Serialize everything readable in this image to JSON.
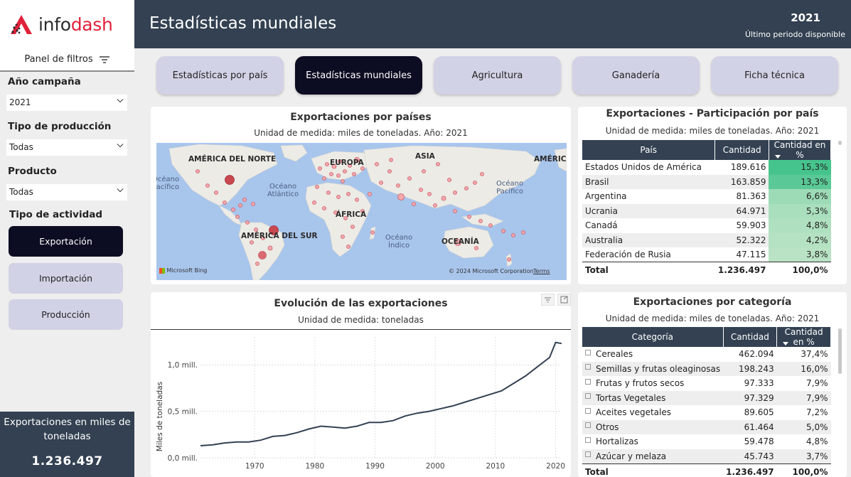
{
  "logo": {
    "part1": "info",
    "part2": "dash"
  },
  "sidebar": {
    "filter_panel_title": "Panel de filtros",
    "filters": [
      {
        "label": "Año campaña",
        "value": "2021"
      },
      {
        "label": "Tipo de producción",
        "value": "Todas"
      },
      {
        "label": "Producto",
        "value": "Todas"
      }
    ],
    "activity_label": "Tipo de actividad",
    "activity_buttons": [
      {
        "label": "Exportación",
        "active": true
      },
      {
        "label": "Importación",
        "active": false
      },
      {
        "label": "Producción",
        "active": false
      }
    ],
    "kpi": {
      "label": "Exportaciones en miles de toneladas",
      "value": "1.236.497"
    }
  },
  "header": {
    "title": "Estadísticas mundiales",
    "year": "2021",
    "year_sub": "Último periodo disponible"
  },
  "tabs": [
    {
      "label": "Estadísticas por país",
      "active": false
    },
    {
      "label": "Estadísticas mundiales",
      "active": true
    },
    {
      "label": "Agricultura",
      "active": false
    },
    {
      "label": "Ganadería",
      "active": false
    },
    {
      "label": "Ficha técnica",
      "active": false
    }
  ],
  "map_card": {
    "title": "Exportaciones por países",
    "subtitle": "Unidad de medida: miles de toneladas. Año: 2021",
    "continent_labels": [
      "AMÉRICA DEL NORTE",
      "EUROPA",
      "ASIA",
      "AMÉRICA",
      "ÁFRICA",
      "AMÉRICA DEL SUR",
      "OCEANÍA"
    ],
    "ocean_labels": [
      "Océano\nPacífico",
      "Océano\nAtlántico",
      "Océano\nÍndico",
      "Océano\nPacífico"
    ],
    "footer_bing": "Microsoft Bing",
    "footer_copyright": "© 2024 Microsoft Corporation",
    "footer_terms": "Terms"
  },
  "country_table": {
    "title": "Exportaciones - Participación por país",
    "subtitle": "Unidad de medida: miles de toneladas. Año: 2021",
    "columns": [
      "País",
      "Cantidad",
      "Cantidad en %"
    ],
    "rows": [
      {
        "name": "Estados Unidos de América",
        "qty": "189.616",
        "pct": "15,3%",
        "share": 15.3
      },
      {
        "name": "Brasil",
        "qty": "163.859",
        "pct": "13,3%",
        "share": 13.3
      },
      {
        "name": "Argentina",
        "qty": "81.363",
        "pct": "6,6%",
        "share": 6.6
      },
      {
        "name": "Ucrania",
        "qty": "64.971",
        "pct": "5,3%",
        "share": 5.3
      },
      {
        "name": "Canadá",
        "qty": "59.903",
        "pct": "4,8%",
        "share": 4.8
      },
      {
        "name": "Australia",
        "qty": "52.322",
        "pct": "4,2%",
        "share": 4.2
      },
      {
        "name": "Federación de Rusia",
        "qty": "47.115",
        "pct": "3,8%",
        "share": 3.8
      }
    ],
    "total": {
      "label": "Total",
      "qty": "1.236.497",
      "pct": "100,0%"
    }
  },
  "category_table": {
    "title": "Exportaciones por categoría",
    "subtitle": "Unidad de medida: miles de toneladas. Año: 2021",
    "columns": [
      "Categoría",
      "Cantidad",
      "Cantidad en %"
    ],
    "rows": [
      {
        "name": "Cereales",
        "qty": "462.094",
        "pct": "37,4%"
      },
      {
        "name": "Semillas y frutas oleaginosas",
        "qty": "198.243",
        "pct": "16,0%"
      },
      {
        "name": "Frutas y frutos secos",
        "qty": "97.333",
        "pct": "7,9%"
      },
      {
        "name": "Tortas Vegetales",
        "qty": "97.329",
        "pct": "7,9%"
      },
      {
        "name": "Aceites vegetales",
        "qty": "89.605",
        "pct": "7,2%"
      },
      {
        "name": "Otros",
        "qty": "61.464",
        "pct": "5,0%"
      },
      {
        "name": "Hortalizas",
        "qty": "59.478",
        "pct": "4,8%"
      },
      {
        "name": "Azúcar y melaza",
        "qty": "45.743",
        "pct": "3,7%"
      }
    ],
    "total": {
      "label": "Total",
      "qty": "1.236.497",
      "pct": "100,0%"
    }
  },
  "line_card": {
    "title": "Evolución de las exportaciones",
    "subtitle": "Unidad de medida: toneladas"
  },
  "chart_data": {
    "type": "line",
    "title": "Evolución de las exportaciones",
    "subtitle": "Unidad de medida: toneladas",
    "xlabel": "",
    "ylabel": "Miles de toneladas",
    "xlim": [
      1961,
      2021
    ],
    "ylim": [
      0,
      1.3
    ],
    "y_ticks": [
      0,
      0.5,
      1.0
    ],
    "y_tick_labels": [
      "0,0 mill.",
      "0,5 mill.",
      "1,0 mill."
    ],
    "x_ticks": [
      1970,
      1980,
      1990,
      2000,
      2010,
      2020
    ],
    "grid": true,
    "series": [
      {
        "color": "#334152",
        "x": [
          1961,
          1963,
          1965,
          1967,
          1969,
          1971,
          1973,
          1975,
          1977,
          1979,
          1981,
          1983,
          1985,
          1987,
          1989,
          1991,
          1993,
          1995,
          1997,
          1999,
          2001,
          2003,
          2005,
          2007,
          2009,
          2011,
          2013,
          2015,
          2017,
          2019,
          2020,
          2021
        ],
        "values": [
          0.13,
          0.14,
          0.16,
          0.17,
          0.17,
          0.19,
          0.23,
          0.24,
          0.27,
          0.31,
          0.34,
          0.33,
          0.32,
          0.34,
          0.38,
          0.38,
          0.4,
          0.45,
          0.48,
          0.5,
          0.53,
          0.56,
          0.6,
          0.64,
          0.68,
          0.72,
          0.8,
          0.88,
          0.98,
          1.08,
          1.24,
          1.23
        ]
      }
    ]
  }
}
